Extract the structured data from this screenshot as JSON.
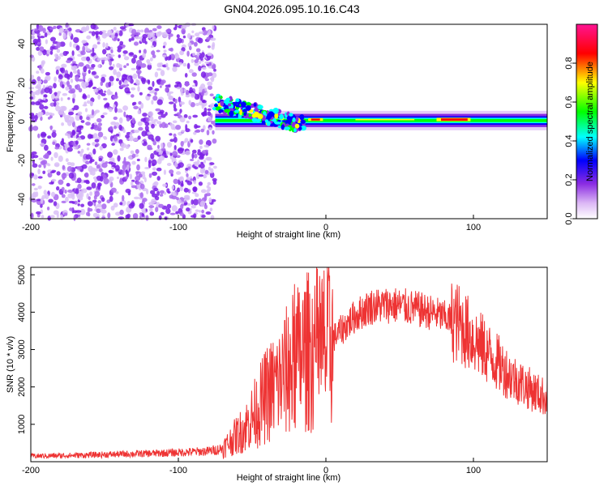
{
  "title": "GN04.2026.095.10.16.C43",
  "chart_data": [
    {
      "type": "heatmap",
      "xlabel": "Height of straight line (km)",
      "ylabel": "Frequency (Hz)",
      "xlim": [
        -200,
        150
      ],
      "ylim": [
        -50,
        50
      ],
      "xticks": [
        -200,
        -100,
        0,
        100
      ],
      "yticks": [
        -40,
        -20,
        0,
        20,
        40
      ],
      "colorbar": {
        "label": "Normalized spectral amplitude",
        "range": [
          0,
          1
        ],
        "ticks": [
          0.0,
          0.2,
          0.4,
          0.6,
          0.8
        ],
        "colors": [
          "#ffffff",
          "#8a2be2",
          "#0000ff",
          "#00ffff",
          "#00ff00",
          "#ffff00",
          "#ff0000",
          "#ff1493"
        ]
      },
      "regions": [
        {
          "name": "noise",
          "x": [
            -200,
            -75
          ],
          "freq": [
            -50,
            50
          ],
          "amplitude": 0.15
        },
        {
          "name": "signal",
          "x": [
            -75,
            150
          ],
          "freq_center": 0,
          "amplitude": 0.5
        }
      ]
    },
    {
      "type": "line",
      "xlabel": "Height of straight line (km)",
      "ylabel": "SNR (10 * v/v)",
      "xlim": [
        -200,
        150
      ],
      "ylim": [
        0,
        5200
      ],
      "xticks": [
        -200,
        -100,
        0,
        100
      ],
      "yticks": [
        1000,
        2000,
        3000,
        4000,
        5000
      ],
      "color": "#ee3333",
      "series": [
        {
          "name": "SNR",
          "x": [
            -200,
            -170,
            -140,
            -110,
            -80,
            -70,
            -62,
            -55,
            -48,
            -40,
            -32,
            -25,
            -15,
            -8,
            0,
            10,
            20,
            30,
            45,
            60,
            75,
            90,
            100,
            110,
            125,
            140,
            150
          ],
          "values": [
            150,
            170,
            200,
            230,
            280,
            350,
            650,
            900,
            1300,
            1800,
            2100,
            2500,
            2900,
            3000,
            3100,
            3500,
            3900,
            4150,
            4200,
            4100,
            3950,
            3700,
            3300,
            2900,
            2300,
            1900,
            1700
          ]
        }
      ]
    }
  ]
}
